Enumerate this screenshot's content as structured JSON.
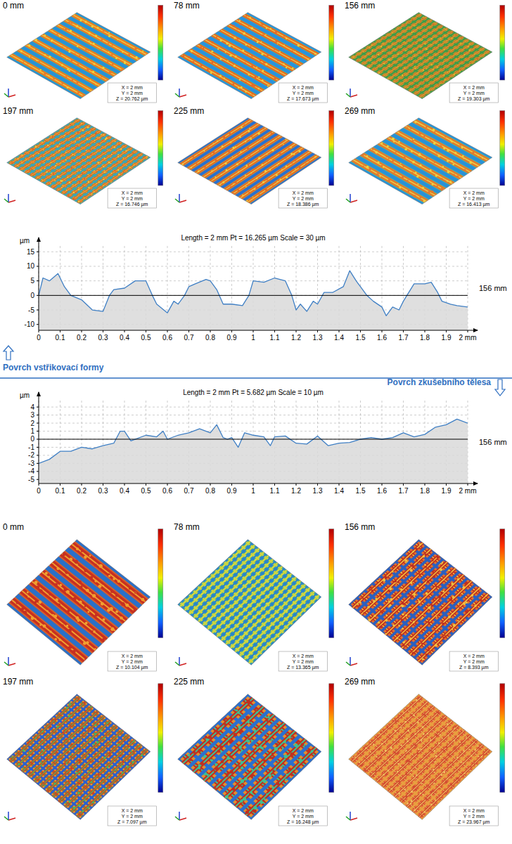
{
  "mold_maps": [
    {
      "label": "0 mm",
      "x": "X = 2 mm",
      "y": "Y = 2 mm",
      "z": "Z = 20.762 µm"
    },
    {
      "label": "78 mm",
      "x": "X = 2 mm",
      "y": "Y = 2 mm",
      "z": "Z = 17.673 µm"
    },
    {
      "label": "156 mm",
      "x": "X = 2 mm",
      "y": "Y = 2 mm",
      "z": "Z = 19.303 µm"
    },
    {
      "label": "197 mm",
      "x": "X = 2 mm",
      "y": "Y = 2 mm",
      "z": "Z = 16.746 µm"
    },
    {
      "label": "225 mm",
      "x": "X = 2 mm",
      "y": "Y = 2 mm",
      "z": "Z = 18.386 µm"
    },
    {
      "label": "269 mm",
      "x": "X = 2 mm",
      "y": "Y = 2 mm",
      "z": "Z = 16.413 µm"
    }
  ],
  "chart_data": [
    {
      "type": "area",
      "title": "Length = 2 mm  Pt = 16.265 µm  Scale = 30 µm",
      "y_label": "µm",
      "x": [
        0,
        0.02,
        0.05,
        0.09,
        0.12,
        0.15,
        0.2,
        0.25,
        0.3,
        0.33,
        0.35,
        0.4,
        0.45,
        0.5,
        0.53,
        0.55,
        0.6,
        0.63,
        0.65,
        0.68,
        0.7,
        0.73,
        0.78,
        0.8,
        0.83,
        0.86,
        0.9,
        0.95,
        0.98,
        1.0,
        1.05,
        1.1,
        1.15,
        1.18,
        1.2,
        1.22,
        1.25,
        1.28,
        1.3,
        1.33,
        1.37,
        1.42,
        1.45,
        1.48,
        1.5,
        1.53,
        1.56,
        1.6,
        1.62,
        1.65,
        1.68,
        1.7,
        1.75,
        1.8,
        1.83,
        1.86,
        1.88,
        1.92,
        1.95,
        2.0
      ],
      "values": [
        0,
        6,
        5,
        7.5,
        3,
        0,
        -1.5,
        -5,
        -5.5,
        0,
        2,
        2.5,
        5,
        5,
        0,
        -3,
        -6,
        -2,
        -3,
        0,
        3,
        4,
        5.5,
        5,
        2,
        -3,
        -3,
        -3.5,
        0,
        5,
        4.5,
        6,
        5,
        0,
        -5,
        -3,
        -5.5,
        -2,
        -3,
        1,
        1,
        3,
        8.5,
        5,
        3,
        0,
        -2,
        -4,
        -7,
        -4,
        -5,
        -2,
        4,
        4,
        4.5,
        1,
        -2,
        -3,
        -3.5,
        -4
      ],
      "xlim": [
        0,
        2
      ],
      "xticks": [
        0,
        0.1,
        0.2,
        0.3,
        0.4,
        0.5,
        0.6,
        0.7,
        0.8,
        0.9,
        1,
        1.1,
        1.2,
        1.3,
        1.4,
        1.5,
        1.6,
        1.7,
        1.8,
        1.9,
        {
          "value": 2,
          "label": "2 mm"
        }
      ],
      "ylim": [
        -12,
        17
      ],
      "yticks": [
        -10,
        -5,
        0,
        5,
        10,
        15
      ],
      "grid": true,
      "color": "#3f7fc4",
      "annotations": [
        "156 mm",
        "Povrch vstřikovací formy"
      ]
    },
    {
      "type": "area",
      "title": "Length = 2 mm  Pt = 5.682 µm  Scale = 10 µm",
      "y_label": "µm",
      "x": [
        0,
        0.05,
        0.1,
        0.15,
        0.2,
        0.25,
        0.3,
        0.35,
        0.38,
        0.4,
        0.43,
        0.5,
        0.55,
        0.58,
        0.6,
        0.65,
        0.7,
        0.75,
        0.8,
        0.83,
        0.86,
        0.88,
        0.9,
        0.93,
        0.96,
        1.0,
        1.05,
        1.08,
        1.1,
        1.15,
        1.2,
        1.25,
        1.3,
        1.35,
        1.4,
        1.45,
        1.5,
        1.55,
        1.6,
        1.65,
        1.7,
        1.75,
        1.8,
        1.85,
        1.9,
        1.95,
        2.0
      ],
      "values": [
        -3,
        -2.5,
        -1.5,
        -1.5,
        -1,
        -1.2,
        -0.8,
        -0.5,
        1,
        1,
        -0.2,
        0.5,
        0.3,
        1,
        0,
        0.5,
        0.8,
        1.3,
        0.8,
        1.8,
        0.2,
        0,
        0.2,
        -1,
        0.8,
        0.5,
        0.3,
        -0.8,
        0.3,
        0.4,
        -0.5,
        -0.6,
        0.4,
        -0.8,
        -0.5,
        -0.4,
        0,
        0.2,
        0,
        0.2,
        0.8,
        0.3,
        0.6,
        1.5,
        1.8,
        2.5,
        2
      ],
      "xlim": [
        0,
        2
      ],
      "xticks": [
        0,
        0.1,
        0.2,
        0.3,
        0.4,
        0.5,
        0.6,
        0.7,
        0.8,
        0.9,
        1,
        1.1,
        1.2,
        1.3,
        1.4,
        1.5,
        1.6,
        1.7,
        1.8,
        1.9,
        {
          "value": 2,
          "label": "2 mm"
        }
      ],
      "ylim": [
        -5.5,
        4.8
      ],
      "yticks": [
        -5,
        -4,
        -3,
        -2,
        -1,
        0,
        1,
        2,
        3,
        4
      ],
      "grid": true,
      "color": "#3f7fc4",
      "annotations": [
        "156 mm",
        "Povrch zkušebního tělesa"
      ]
    }
  ],
  "specimen_maps": [
    {
      "label": "0 mm",
      "x": "X = 2 mm",
      "y": "Y = 2 mm",
      "z": "Z = 10.104 µm"
    },
    {
      "label": "78 mm",
      "x": "X = 2 mm",
      "y": "Y = 2 mm",
      "z": "Z = 13.365 µm"
    },
    {
      "label": "156 mm",
      "x": "X = 2 mm",
      "y": "Y = 2 mm",
      "z": "Z = 8.393 µm"
    },
    {
      "label": "197 mm",
      "x": "X = 2 mm",
      "y": "Y = 2 mm",
      "z": "Z = 7.097 µm"
    },
    {
      "label": "225 mm",
      "x": "X = 2 mm",
      "y": "Y = 2 mm",
      "z": "Z = 16.248 µm"
    },
    {
      "label": "269 mm",
      "x": "X = 2 mm",
      "y": "Y = 2 mm",
      "z": "Z = 23.967 µm"
    }
  ]
}
